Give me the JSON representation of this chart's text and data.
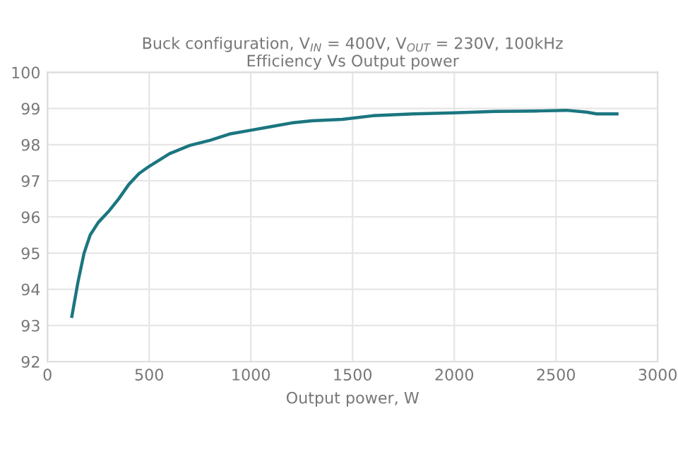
{
  "chart_data": {
    "type": "line",
    "title": "Buck configuration, V$_{IN}$ = 400V, V$_{OUT}$ = 230V, 100kHz\nEfficiency Vs Output power",
    "xlabel": "Output power, W",
    "series": [
      {
        "color": "#1b7680",
        "x": [
          120,
          150,
          180,
          210,
          250,
          300,
          350,
          400,
          450,
          500,
          600,
          700,
          800,
          900,
          1000,
          1100,
          1200,
          1300,
          1450,
          1600,
          1800,
          2000,
          2200,
          2400,
          2550,
          2650,
          2700,
          2800
        ],
        "values": [
          93.25,
          94.2,
          95.0,
          95.5,
          95.85,
          96.15,
          96.5,
          96.9,
          97.2,
          97.4,
          97.75,
          97.98,
          98.12,
          98.3,
          98.4,
          98.5,
          98.6,
          98.66,
          98.7,
          98.8,
          98.85,
          98.88,
          98.92,
          98.93,
          98.95,
          98.9,
          98.85,
          98.85
        ]
      }
    ],
    "xlim": [
      0,
      3000
    ],
    "xticks": [
      0,
      500,
      1000,
      1500,
      2000,
      2500,
      3000
    ],
    "ylim": [
      92,
      100
    ],
    "yticks": [
      92,
      93,
      94,
      95,
      96,
      97,
      98,
      99,
      100
    ],
    "grid": true,
    "marker": "none",
    "line_style": "solid"
  }
}
